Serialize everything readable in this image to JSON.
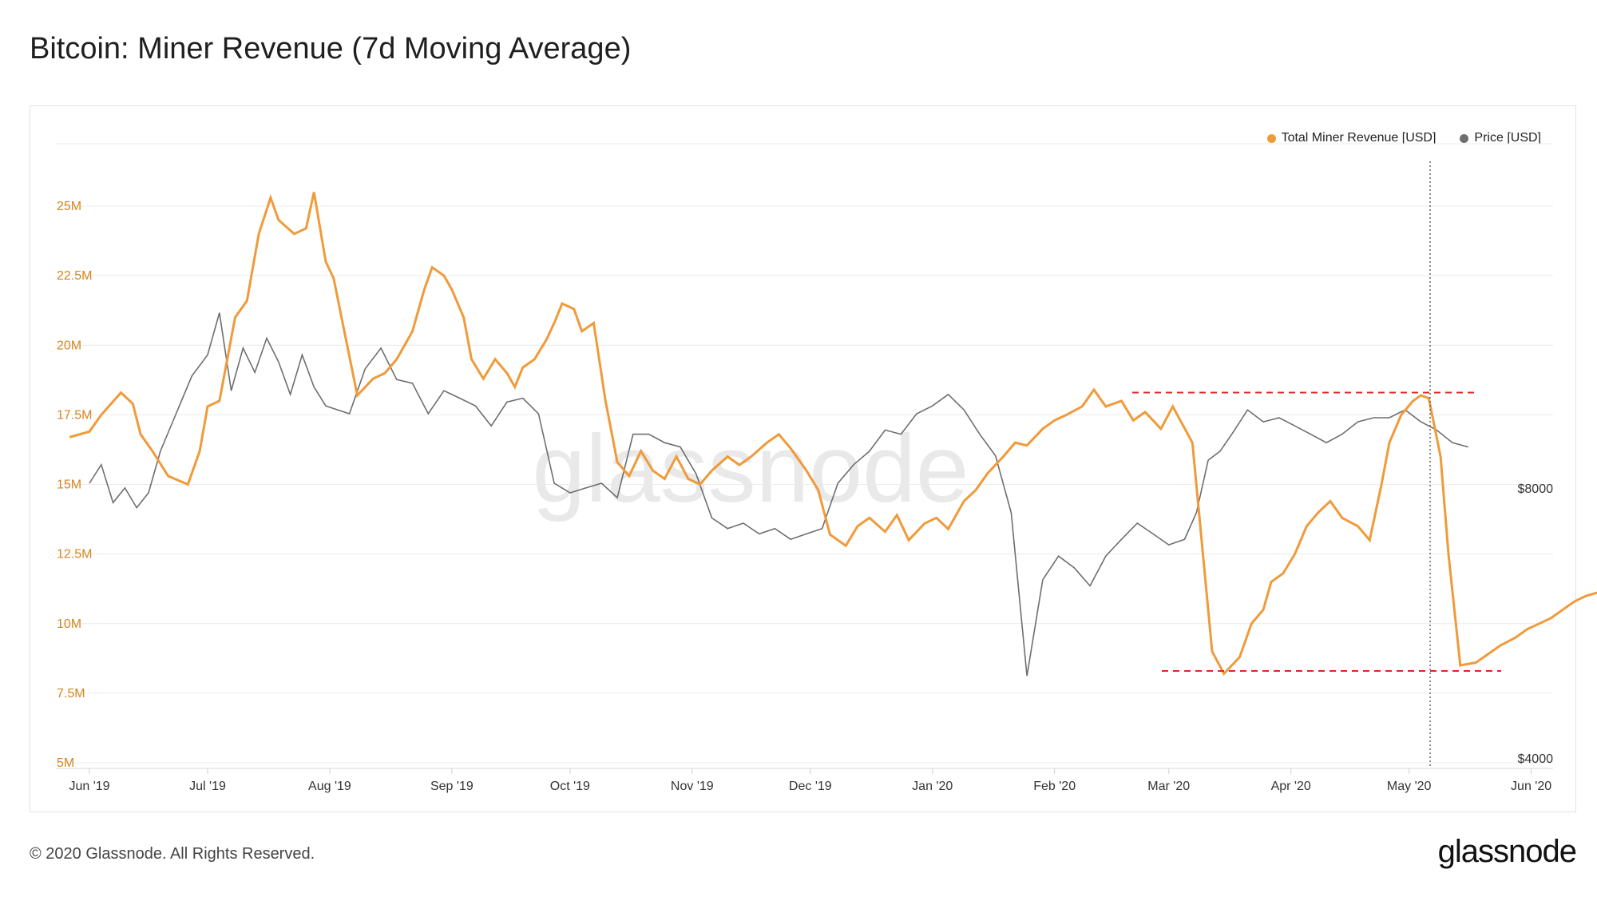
{
  "title": "Bitcoin: Miner Revenue (7d Moving Average)",
  "footer": "© 2020 Glassnode. All Rights Reserved.",
  "logo": "glassnode",
  "watermark": "glassnode",
  "colors": {
    "revenue": "#f09a3a",
    "price": "#6e6e6e",
    "marker": "#e02424",
    "axis_left": "#d5851f"
  },
  "chart_data": {
    "type": "line",
    "legend": [
      "Total Miner Revenue [USD]",
      "Price [USD]"
    ],
    "x_ticks": [
      "Jun '19",
      "Jul '19",
      "Aug '19",
      "Sep '19",
      "Oct '19",
      "Nov '19",
      "Dec '19",
      "Jan '20",
      "Feb '20",
      "Mar '20",
      "Apr '20",
      "May '20",
      "Jun '20"
    ],
    "y_left_ticks": [
      "5M",
      "7.5M",
      "10M",
      "12.5M",
      "15M",
      "17.5M",
      "20M",
      "22.5M",
      "25M"
    ],
    "y_left_range": [
      5000000,
      28000000
    ],
    "y_right_ticks": [
      "$4000",
      "$8000"
    ],
    "y_right_scale": "log",
    "revenue": {
      "name": "Total Miner Revenue [USD]",
      "x": [
        -5,
        0,
        3,
        8,
        11,
        13,
        16,
        20,
        25,
        28,
        30,
        33,
        37,
        40,
        43,
        46,
        48,
        52,
        55,
        57,
        60,
        62,
        64,
        66,
        68,
        72,
        75,
        78,
        80,
        82,
        85,
        87,
        90,
        92,
        95,
        97,
        100,
        103,
        106,
        108,
        110,
        113,
        116,
        118,
        120,
        123,
        125,
        128,
        131,
        134,
        137,
        140,
        143,
        146,
        149,
        152,
        155,
        158,
        162,
        165,
        168,
        172,
        175,
        178,
        182,
        185,
        188,
        192,
        195,
        198,
        202,
        205,
        208,
        212,
        215,
        218,
        222,
        225,
        228,
        232,
        235,
        238,
        242,
        245,
        248,
        252,
        255,
        258,
        262,
        265,
        268,
        272,
        275,
        280,
        285,
        288,
        292,
        295,
        298,
        300,
        303,
        306,
        309,
        312,
        315,
        318,
        322,
        325,
        328,
        330,
        333,
        336,
        338,
        340,
        343,
        345,
        348,
        352,
        355,
        358,
        362,
        365,
        368,
        371,
        374,
        377,
        380,
        385
      ],
      "y": [
        16.7,
        16.9,
        17.5,
        18.3,
        17.9,
        16.8,
        16.2,
        15.3,
        15.0,
        16.2,
        17.8,
        18.0,
        21.0,
        21.6,
        24.0,
        25.3,
        24.5,
        24.0,
        24.2,
        25.5,
        23.0,
        22.4,
        21.0,
        19.6,
        18.2,
        18.8,
        19.0,
        19.5,
        20.0,
        20.5,
        22.0,
        22.8,
        22.5,
        22.0,
        21.0,
        19.5,
        18.8,
        19.5,
        19.0,
        18.5,
        19.2,
        19.5,
        20.2,
        20.8,
        21.5,
        21.3,
        20.5,
        20.8,
        18.0,
        15.8,
        15.3,
        16.2,
        15.5,
        15.2,
        16.0,
        15.2,
        15.0,
        15.5,
        16.0,
        15.7,
        16.0,
        16.5,
        16.8,
        16.3,
        15.5,
        14.8,
        13.2,
        12.8,
        13.5,
        13.8,
        13.3,
        13.9,
        13.0,
        13.6,
        13.8,
        13.4,
        14.4,
        14.8,
        15.4,
        16.0,
        16.5,
        16.4,
        17.0,
        17.3,
        17.5,
        17.8,
        18.4,
        17.8,
        18.0,
        17.3,
        17.6,
        17.0,
        17.8,
        16.5,
        9.0,
        8.2,
        8.8,
        10.0,
        10.5,
        11.5,
        11.8,
        12.5,
        13.5,
        14.0,
        14.4,
        13.8,
        13.5,
        13.0,
        15.0,
        16.5,
        17.5,
        18.0,
        18.2,
        18.1,
        16.0,
        12.5,
        8.5,
        8.6,
        8.9,
        9.2,
        9.5,
        9.8,
        10.0,
        10.2,
        10.5,
        10.8,
        11.0,
        11.2
      ],
      "x_range_days": [
        -10,
        390
      ]
    },
    "price": {
      "name": "Price [USD]",
      "x": [
        0,
        3,
        6,
        9,
        12,
        15,
        18,
        22,
        26,
        30,
        33,
        36,
        39,
        42,
        45,
        48,
        51,
        54,
        57,
        60,
        63,
        66,
        70,
        74,
        78,
        82,
        86,
        90,
        94,
        98,
        102,
        106,
        110,
        114,
        118,
        122,
        126,
        130,
        134,
        138,
        142,
        146,
        150,
        154,
        158,
        162,
        166,
        170,
        174,
        178,
        182,
        186,
        190,
        194,
        198,
        202,
        206,
        210,
        214,
        218,
        222,
        226,
        230,
        234,
        238,
        242,
        246,
        250,
        254,
        258,
        262,
        266,
        270,
        274,
        278,
        281,
        284,
        287,
        290,
        294,
        298,
        302,
        306,
        310,
        314,
        318,
        322,
        326,
        330,
        334,
        338,
        342,
        346,
        350
      ],
      "y": [
        8200,
        8600,
        7800,
        8100,
        7700,
        8000,
        8900,
        9800,
        10800,
        11400,
        12700,
        10400,
        11600,
        10900,
        11900,
        11200,
        10300,
        11400,
        10500,
        10000,
        9900,
        9800,
        11000,
        11600,
        10700,
        10600,
        9800,
        10400,
        10200,
        10000,
        9500,
        10100,
        10200,
        9800,
        8200,
        8000,
        8100,
        8200,
        7900,
        9300,
        9300,
        9100,
        9000,
        8400,
        7500,
        7300,
        7400,
        7200,
        7300,
        7100,
        7200,
        7300,
        8200,
        8600,
        8900,
        9400,
        9300,
        9800,
        10000,
        10300,
        9900,
        9300,
        8800,
        7600,
        5000,
        6400,
        6800,
        6600,
        6300,
        6800,
        7100,
        7400,
        7200,
        7000,
        7100,
        7600,
        8700,
        8900,
        9300,
        9900,
        9600,
        9700,
        9500,
        9300,
        9100,
        9300,
        9600,
        9700,
        9700,
        9900,
        9600,
        9400,
        9100,
        9000
      ],
      "x_offset_note": ""
    },
    "annotations": {
      "upper_dashed_level": 18.3,
      "lower_dashed_level": 8.3,
      "vertical_dotted_date": "May '20"
    }
  }
}
